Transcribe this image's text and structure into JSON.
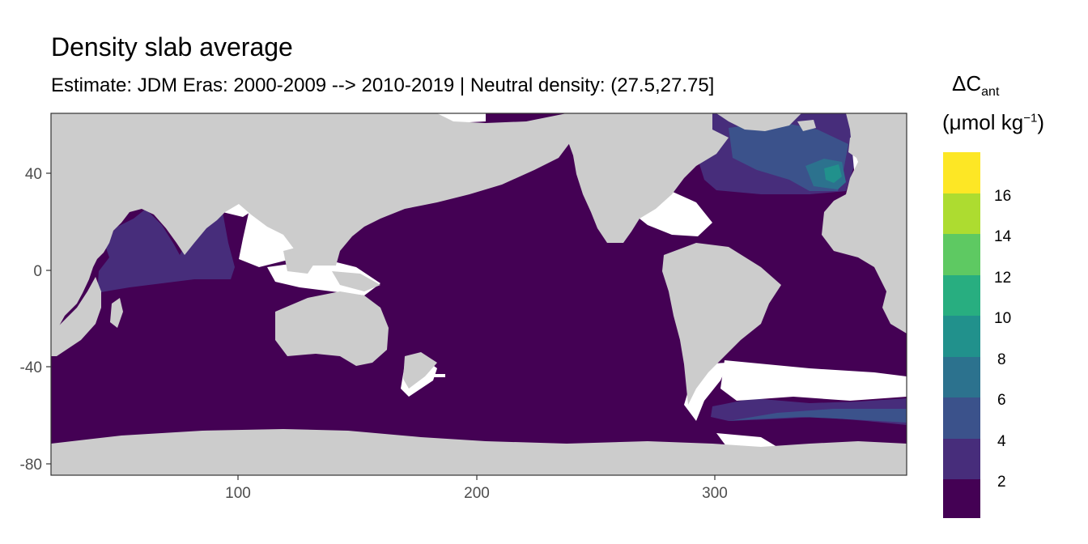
{
  "title": "Density slab average",
  "subtitle": "Estimate: JDM Eras: 2000-2009 --> 2010-2019 | Neutral density: (27.5,27.75]",
  "legend": {
    "symbol": "ΔC",
    "subscript": "ant",
    "unit_prefix": "(μmol kg",
    "unit_exponent": "−1",
    "unit_suffix": ")",
    "labels": [
      "2",
      "4",
      "6",
      "8",
      "10",
      "12",
      "14",
      "16"
    ],
    "colors": [
      "#440154",
      "#472D7B",
      "#3B528B",
      "#2C728E",
      "#21918C",
      "#28AE80",
      "#5EC962",
      "#ADDC30",
      "#FDE725"
    ]
  },
  "axes": {
    "x_ticks": [
      "100",
      "200",
      "300"
    ],
    "y_ticks": [
      "40",
      "0",
      "-40",
      "-80"
    ]
  },
  "colors": {
    "land": "#cccccc",
    "ocean_background": "#440154",
    "no_data": "#ffffff"
  }
}
